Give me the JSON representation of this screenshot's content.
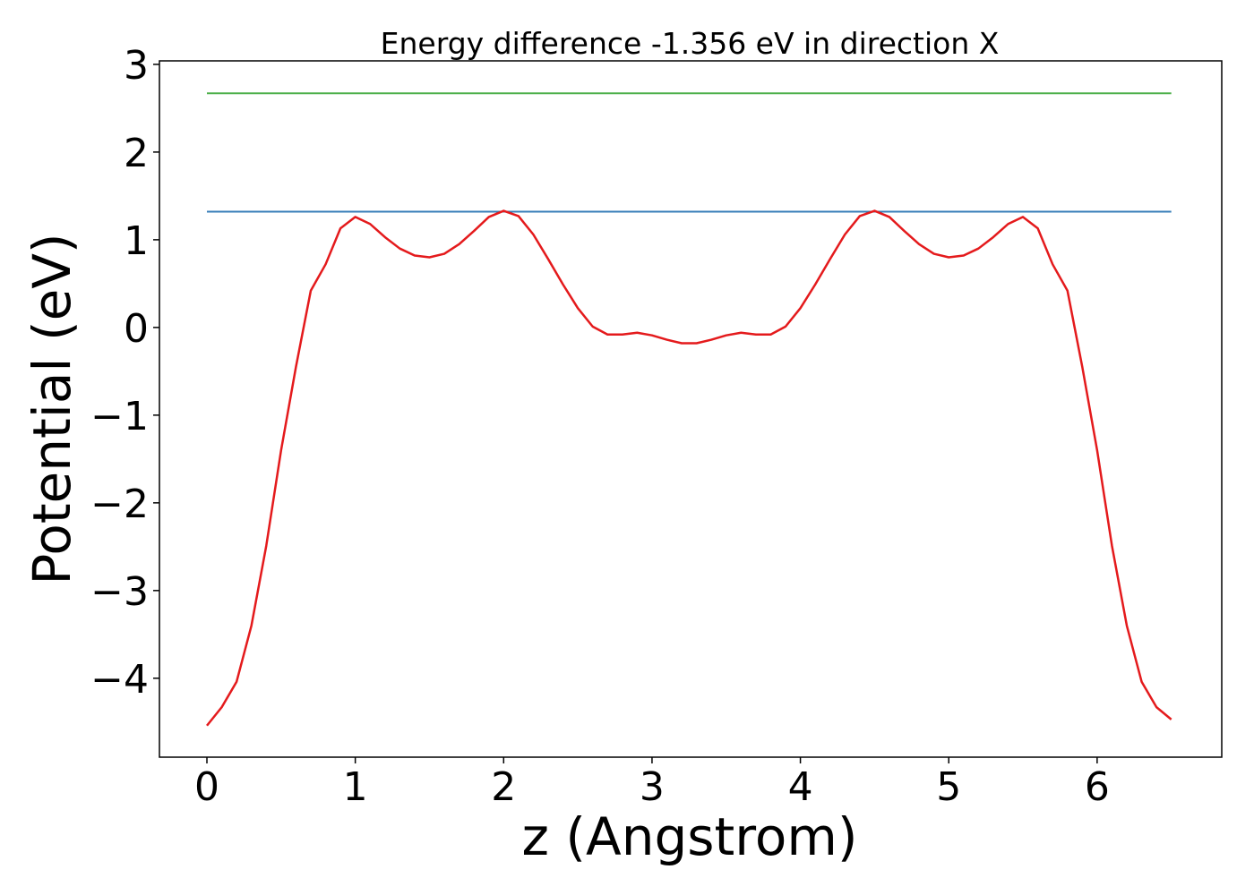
{
  "chart_data": {
    "type": "line",
    "title": "Energy difference -1.356 eV in direction X",
    "xlabel": "z (Angstrom)",
    "ylabel": "Potential (eV)",
    "x": [
      0,
      0.1,
      0.2,
      0.3,
      0.4,
      0.5,
      0.6,
      0.7,
      0.8,
      0.9,
      1.0,
      1.1,
      1.2,
      1.3,
      1.4,
      1.5,
      1.6,
      1.7,
      1.8,
      1.9,
      2.0,
      2.1,
      2.2,
      2.3,
      2.4,
      2.5,
      2.6,
      2.7,
      2.8,
      2.9,
      3.0,
      3.1,
      3.2,
      3.3,
      3.4,
      3.5,
      3.6,
      3.7,
      3.8,
      3.9,
      4.0,
      4.1,
      4.2,
      4.3,
      4.4,
      4.5,
      4.6,
      4.7,
      4.8,
      4.9,
      5.0,
      5.1,
      5.2,
      5.3,
      5.4,
      5.5,
      5.6,
      5.7,
      5.8,
      5.9,
      6.0,
      6.1,
      6.2,
      6.3,
      6.4,
      6.5
    ],
    "series": [
      {
        "color": "#e41a1c",
        "values": [
          -4.54,
          -4.33,
          -4.04,
          -3.4,
          -2.49,
          -1.4,
          -0.45,
          0.42,
          0.72,
          1.13,
          1.26,
          1.18,
          1.03,
          0.9,
          0.82,
          0.8,
          0.84,
          0.95,
          1.1,
          1.26,
          1.33,
          1.27,
          1.06,
          0.78,
          0.49,
          0.22,
          0.01,
          -0.08,
          -0.08,
          -0.06,
          -0.09,
          -0.14,
          -0.18,
          -0.18,
          -0.14,
          -0.09,
          -0.06,
          -0.08,
          -0.08,
          0.01,
          0.22,
          0.49,
          0.78,
          1.06,
          1.27,
          1.33,
          1.26,
          1.1,
          0.95,
          0.84,
          0.8,
          0.82,
          0.9,
          1.03,
          1.18,
          1.26,
          1.13,
          0.72,
          0.42,
          -0.45,
          -1.4,
          -2.49,
          -3.4,
          -4.04,
          -4.33,
          -4.47
        ]
      }
    ],
    "hlines": [
      {
        "value": 2.67,
        "color": "#4daf4a",
        "xmin": 0,
        "xmax": 6.5
      },
      {
        "value": 1.32,
        "color": "#377eb8",
        "xmin": 0,
        "xmax": 6.5
      }
    ],
    "xlim": [
      -0.32,
      6.84
    ],
    "ylim": [
      -4.9,
      3.04
    ],
    "xticks": [
      0,
      1,
      2,
      3,
      4,
      5,
      6
    ],
    "yticks": [
      {
        "value": -4,
        "label": "−4"
      },
      {
        "value": -3,
        "label": "−3"
      },
      {
        "value": -2,
        "label": "−2"
      },
      {
        "value": -1,
        "label": "−1"
      },
      0,
      1,
      2,
      3
    ]
  }
}
